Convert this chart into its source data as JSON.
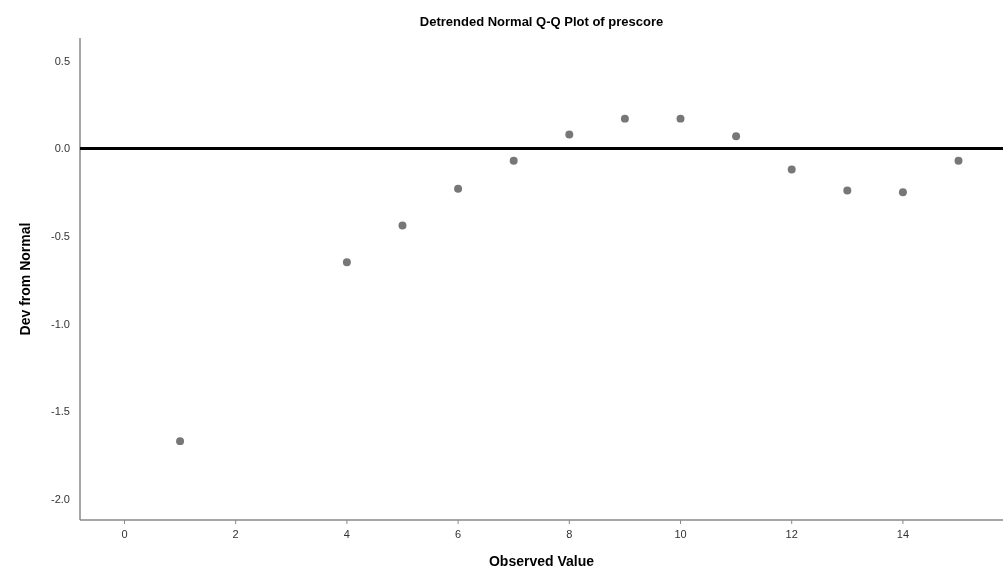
{
  "chart_data": {
    "type": "scatter",
    "title": "Detrended Normal Q-Q Plot of prescore",
    "xlabel": "Observed Value",
    "ylabel": "Dev from Normal",
    "x": [
      1,
      4,
      5,
      6,
      7,
      8,
      9,
      10,
      11,
      12,
      13,
      14,
      15
    ],
    "values": [
      -1.67,
      -0.65,
      -0.44,
      -0.23,
      -0.07,
      0.08,
      0.17,
      0.17,
      0.07,
      -0.12,
      -0.24,
      -0.25,
      -0.07
    ],
    "color": "#777777",
    "marker": "circle",
    "xlim": [
      -0.8,
      15.8
    ],
    "xticks": [
      0,
      2,
      4,
      6,
      8,
      10,
      12,
      14
    ],
    "ylim": [
      -2.12,
      0.63
    ],
    "yticks": [
      {
        "value": 0.5,
        "label": "0.5"
      },
      {
        "value": 0,
        "label": "0.0"
      },
      {
        "value": -0.5,
        "label": "-0.5"
      },
      {
        "value": -1,
        "label": "-1.0"
      },
      {
        "value": -1.5,
        "label": "-1.5"
      },
      {
        "value": -2,
        "label": "-2.0"
      }
    ],
    "ref_lines": [
      {
        "axis": "y",
        "value": 0,
        "color": "#000000"
      }
    ],
    "grid": false
  }
}
